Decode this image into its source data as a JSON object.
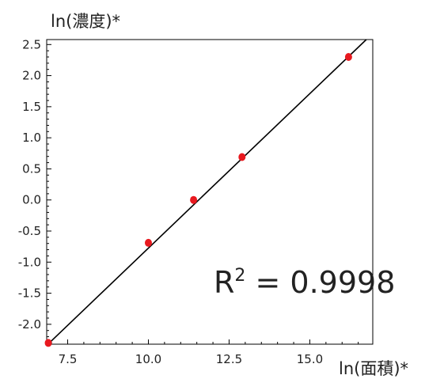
{
  "chart_data": {
    "type": "scatter",
    "title": "",
    "xlabel": "ln(面積)*",
    "ylabel": "ln(濃度)*",
    "xlim": [
      6.85,
      16.95
    ],
    "ylim": [
      -2.32,
      2.58
    ],
    "x_ticks": [
      7.5,
      10.0,
      12.5,
      15.0
    ],
    "x_tick_labels": [
      "7.5",
      "10.0",
      "12.5",
      "15.0"
    ],
    "y_ticks": [
      2.5,
      2.0,
      1.5,
      1.0,
      0.5,
      0.0,
      -0.5,
      -1.0,
      -1.5,
      -2.0
    ],
    "y_tick_labels": [
      "2.5",
      "2.0",
      "1.5",
      "1.0",
      "0.5",
      "0.0",
      "-0.5",
      "-1.0",
      "-1.5",
      "-2.0"
    ],
    "series": [
      {
        "points": [
          {
            "x": 6.9,
            "y": -2.3
          },
          {
            "x": 10.0,
            "y": -0.69
          },
          {
            "x": 11.4,
            "y": 0.0
          },
          {
            "x": 12.9,
            "y": 0.69
          },
          {
            "x": 16.2,
            "y": 2.3
          }
        ],
        "color": "#e8191f"
      }
    ],
    "fit_line": {
      "x": [
        6.85,
        16.75
      ],
      "y": [
        -2.34,
        2.58
      ],
      "color": "#000000"
    },
    "annotation": {
      "base": "R",
      "superscript": "2",
      "rest": " = 0.9998"
    },
    "grid": false,
    "legend": "none"
  }
}
